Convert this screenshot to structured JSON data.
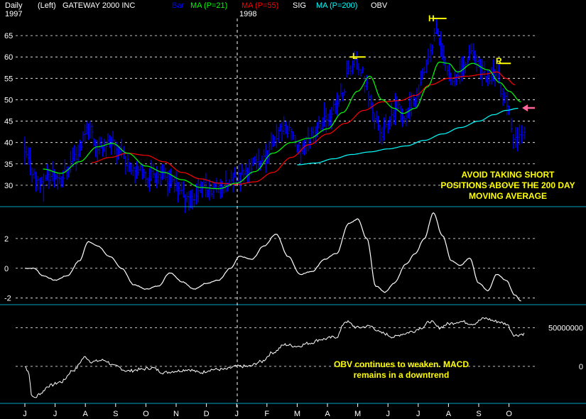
{
  "header": {
    "period": "Daily",
    "scale": "(Left)",
    "security": "GATEWAY 2000 INC",
    "items": [
      {
        "label": "Bar",
        "color": "#0000ff"
      },
      {
        "label": "MA (P=21)",
        "color": "#00ff00"
      },
      {
        "label": "MA (P=55)",
        "color": "#ff0000"
      },
      {
        "label": "SIG",
        "color": "#ffffff"
      },
      {
        "label": "MA (P=200)",
        "color": "#00ffff"
      },
      {
        "label": "OBV",
        "color": "#ffffff"
      }
    ],
    "year_labels": [
      "1997",
      "1998"
    ]
  },
  "annotations": {
    "pattern_left": "L",
    "pattern_head": "H",
    "pattern_right": "R",
    "price_note": [
      "AVOID TAKING SHORT",
      "POSITIONS ABOVE THE 200 DAY",
      "MOVING AVERAGE"
    ],
    "obv_note": [
      "OBV continues to weaken.  MACD",
      "remains in a downtrend"
    ],
    "arrow_color": "#ff6699"
  },
  "chart_data": [
    {
      "type": "line",
      "panel": "price",
      "x_tick_labels": [
        "J",
        "J",
        "A",
        "S",
        "O",
        "N",
        "D",
        "J",
        "F",
        "M",
        "A",
        "M",
        "J",
        "J",
        "A",
        "S",
        "O"
      ],
      "y_ticks": [
        30,
        35,
        40,
        45,
        50,
        55,
        60,
        65
      ],
      "ylim": [
        25.5,
        69
      ],
      "grid": true,
      "bars": {
        "name": "Bar",
        "color": "#0000ff",
        "key_points": [
          [
            0,
            37
          ],
          [
            0.3,
            33
          ],
          [
            0.5,
            30
          ],
          [
            0.8,
            32
          ],
          [
            1.2,
            32
          ],
          [
            1.7,
            37
          ],
          [
            2.1,
            44
          ],
          [
            2.4,
            39
          ],
          [
            2.8,
            40
          ],
          [
            3.2,
            38
          ],
          [
            3.4,
            35
          ],
          [
            3.7,
            34
          ],
          [
            4.0,
            32
          ],
          [
            4.3,
            33
          ],
          [
            4.6,
            32
          ],
          [
            5.0,
            30
          ],
          [
            5.3,
            28
          ],
          [
            5.6,
            27
          ],
          [
            5.8,
            30
          ],
          [
            6.1,
            29
          ],
          [
            6.4,
            30
          ],
          [
            6.7,
            30
          ],
          [
            7.0,
            32
          ],
          [
            7.3,
            33
          ],
          [
            7.6,
            35
          ],
          [
            7.9,
            36
          ],
          [
            8.2,
            40
          ],
          [
            8.5,
            43
          ],
          [
            8.8,
            43
          ],
          [
            9.0,
            38
          ],
          [
            9.3,
            40
          ],
          [
            9.6,
            43
          ],
          [
            9.9,
            45
          ],
          [
            10.2,
            48
          ],
          [
            10.5,
            51
          ],
          [
            10.7,
            57
          ],
          [
            10.9,
            59
          ],
          [
            11.1,
            57
          ],
          [
            11.3,
            53
          ],
          [
            11.5,
            47
          ],
          [
            11.8,
            42
          ],
          [
            12.0,
            44
          ],
          [
            12.3,
            48
          ],
          [
            12.6,
            46
          ],
          [
            12.9,
            50
          ],
          [
            13.2,
            56
          ],
          [
            13.4,
            61
          ],
          [
            13.6,
            67
          ],
          [
            13.75,
            63
          ],
          [
            13.9,
            58
          ],
          [
            14.2,
            55
          ],
          [
            14.5,
            58
          ],
          [
            14.75,
            62
          ],
          [
            15.0,
            58
          ],
          [
            15.3,
            55
          ],
          [
            15.6,
            57
          ],
          [
            15.8,
            51
          ],
          [
            16.0,
            47
          ],
          [
            16.15,
            40
          ],
          [
            16.35,
            43
          ],
          [
            16.5,
            42
          ]
        ]
      },
      "ma21": {
        "name": "MA (P=21)",
        "color": "#00ff00",
        "points": [
          [
            0.6,
            33.8
          ],
          [
            1.2,
            32.8
          ],
          [
            1.8,
            35.5
          ],
          [
            2.4,
            39
          ],
          [
            2.9,
            39.8
          ],
          [
            3.4,
            37.5
          ],
          [
            4.0,
            34.5
          ],
          [
            4.6,
            33
          ],
          [
            5.2,
            31.3
          ],
          [
            5.8,
            29.5
          ],
          [
            6.4,
            29.2
          ],
          [
            7.0,
            30.5
          ],
          [
            7.6,
            33.2
          ],
          [
            8.2,
            37.5
          ],
          [
            8.8,
            40
          ],
          [
            9.4,
            41
          ],
          [
            10.0,
            43.2
          ],
          [
            10.5,
            47
          ],
          [
            11.0,
            52
          ],
          [
            11.4,
            55.5
          ],
          [
            11.8,
            50
          ],
          [
            12.2,
            48
          ],
          [
            12.5,
            46.8
          ],
          [
            12.9,
            48
          ],
          [
            13.3,
            53
          ],
          [
            13.7,
            58.8
          ],
          [
            14.0,
            58.5
          ],
          [
            14.3,
            56.5
          ],
          [
            14.8,
            58.5
          ],
          [
            15.3,
            57
          ],
          [
            15.7,
            54
          ],
          [
            16.0,
            52
          ],
          [
            16.4,
            49.5
          ]
        ]
      },
      "ma55": {
        "name": "MA (P=55)",
        "color": "#ff0000",
        "points": [
          [
            2.2,
            35.3
          ],
          [
            2.8,
            36.5
          ],
          [
            3.4,
            37.5
          ],
          [
            4.0,
            37
          ],
          [
            4.6,
            35.5
          ],
          [
            5.2,
            33
          ],
          [
            5.8,
            31.5
          ],
          [
            6.4,
            30.5
          ],
          [
            7.0,
            30.2
          ],
          [
            7.6,
            30.8
          ],
          [
            8.2,
            33
          ],
          [
            8.8,
            36.5
          ],
          [
            9.4,
            39.5
          ],
          [
            10.0,
            42
          ],
          [
            10.6,
            44.5
          ],
          [
            11.2,
            47.5
          ],
          [
            11.8,
            49.5
          ],
          [
            12.4,
            49.8
          ],
          [
            12.9,
            51
          ],
          [
            13.4,
            53.5
          ],
          [
            14.0,
            55
          ],
          [
            14.6,
            55.5
          ],
          [
            15.2,
            56
          ],
          [
            15.6,
            56.5
          ],
          [
            15.9,
            55
          ],
          [
            16.2,
            53.5
          ]
        ]
      },
      "ma200": {
        "name": "MA (P=200)",
        "color": "#00ffff",
        "points": [
          [
            9.0,
            34.8
          ],
          [
            9.6,
            35.2
          ],
          [
            10.2,
            36.2
          ],
          [
            10.8,
            37.2
          ],
          [
            11.4,
            37.8
          ],
          [
            12.0,
            38.5
          ],
          [
            12.6,
            39.2
          ],
          [
            13.2,
            40.5
          ],
          [
            13.8,
            42
          ],
          [
            14.4,
            43.5
          ],
          [
            15.0,
            45
          ],
          [
            15.5,
            46.5
          ],
          [
            15.9,
            47.5
          ],
          [
            16.3,
            48
          ]
        ]
      }
    },
    {
      "type": "line",
      "panel": "macd",
      "series": [
        {
          "name": "SIG",
          "color": "#ffffff",
          "points": [
            [
              0,
              0
            ],
            [
              0.3,
              0
            ],
            [
              0.6,
              -0.5
            ],
            [
              1.0,
              -0.8
            ],
            [
              1.4,
              -0.5
            ],
            [
              1.8,
              0.5
            ],
            [
              2.1,
              1.8
            ],
            [
              2.4,
              1.5
            ],
            [
              2.8,
              0.8
            ],
            [
              3.2,
              0
            ],
            [
              3.6,
              -1.1
            ],
            [
              4.0,
              -1.4
            ],
            [
              4.4,
              -1.2
            ],
            [
              4.8,
              -0.3
            ],
            [
              5.2,
              -0.9
            ],
            [
              5.6,
              -1.4
            ],
            [
              6.0,
              -1.0
            ],
            [
              6.4,
              -0.8
            ],
            [
              6.8,
              0
            ],
            [
              7.1,
              0.8
            ],
            [
              7.5,
              0.6
            ],
            [
              7.9,
              1.5
            ],
            [
              8.3,
              2.3
            ],
            [
              8.7,
              0.8
            ],
            [
              9.1,
              -0.4
            ],
            [
              9.5,
              -0.2
            ],
            [
              9.9,
              0.6
            ],
            [
              10.3,
              1.0
            ],
            [
              10.7,
              3.0
            ],
            [
              11.0,
              3.3
            ],
            [
              11.3,
              2.0
            ],
            [
              11.6,
              -1.2
            ],
            [
              11.9,
              -1.6
            ],
            [
              12.2,
              -1.0
            ],
            [
              12.6,
              0.3
            ],
            [
              12.9,
              1.0
            ],
            [
              13.2,
              2.0
            ],
            [
              13.5,
              3.7
            ],
            [
              13.8,
              2.2
            ],
            [
              14.1,
              0.5
            ],
            [
              14.4,
              0.2
            ],
            [
              14.7,
              0.7
            ],
            [
              15.0,
              -1.0
            ],
            [
              15.3,
              -1.5
            ],
            [
              15.6,
              -0.4
            ],
            [
              15.9,
              -0.8
            ],
            [
              16.2,
              -1.8
            ],
            [
              16.4,
              -2.2
            ]
          ]
        }
      ],
      "y_ticks": [
        -2,
        0,
        2
      ],
      "ylim": [
        -2.3,
        3.9
      ],
      "grid": true
    },
    {
      "type": "line",
      "panel": "obv",
      "series": [
        {
          "name": "OBV",
          "color": "#ffffff",
          "points": [
            [
              0,
              0
            ],
            [
              0.1,
              -5000000
            ],
            [
              0.25,
              -40000000
            ],
            [
              0.35,
              -40000000
            ],
            [
              0.5,
              -35000000
            ],
            [
              0.8,
              -25000000
            ],
            [
              1.2,
              -20000000
            ],
            [
              1.6,
              -5000000
            ],
            [
              2.0,
              12000000
            ],
            [
              2.2,
              6000000
            ],
            [
              2.6,
              8000000
            ],
            [
              3.0,
              0
            ],
            [
              3.4,
              -6000000
            ],
            [
              3.8,
              -4000000
            ],
            [
              4.2,
              -2000000
            ],
            [
              4.6,
              -8000000
            ],
            [
              5.0,
              -6000000
            ],
            [
              5.4,
              -4000000
            ],
            [
              5.8,
              -8000000
            ],
            [
              6.2,
              -4000000
            ],
            [
              6.6,
              -4000000
            ],
            [
              7.0,
              0
            ],
            [
              7.4,
              0
            ],
            [
              7.8,
              6000000
            ],
            [
              8.2,
              18000000
            ],
            [
              8.6,
              28000000
            ],
            [
              9.0,
              26000000
            ],
            [
              9.4,
              30000000
            ],
            [
              9.8,
              35000000
            ],
            [
              10.3,
              38000000
            ],
            [
              10.6,
              58000000
            ],
            [
              11.0,
              50000000
            ],
            [
              11.4,
              52000000
            ],
            [
              11.8,
              43000000
            ],
            [
              12.2,
              38000000
            ],
            [
              12.5,
              42000000
            ],
            [
              12.8,
              45000000
            ],
            [
              13.1,
              50000000
            ],
            [
              13.4,
              58000000
            ],
            [
              13.7,
              50000000
            ],
            [
              14.0,
              55000000
            ],
            [
              14.4,
              58000000
            ],
            [
              14.8,
              55000000
            ],
            [
              15.2,
              62000000
            ],
            [
              15.6,
              58000000
            ],
            [
              15.9,
              55000000
            ],
            [
              16.2,
              40000000
            ],
            [
              16.5,
              42000000
            ]
          ]
        }
      ],
      "y_ticks": [
        0,
        50000000
      ],
      "y_tick_labels": [
        "0",
        "50000000"
      ],
      "ylim": [
        -45000000,
        76000000
      ],
      "grid": true
    }
  ]
}
